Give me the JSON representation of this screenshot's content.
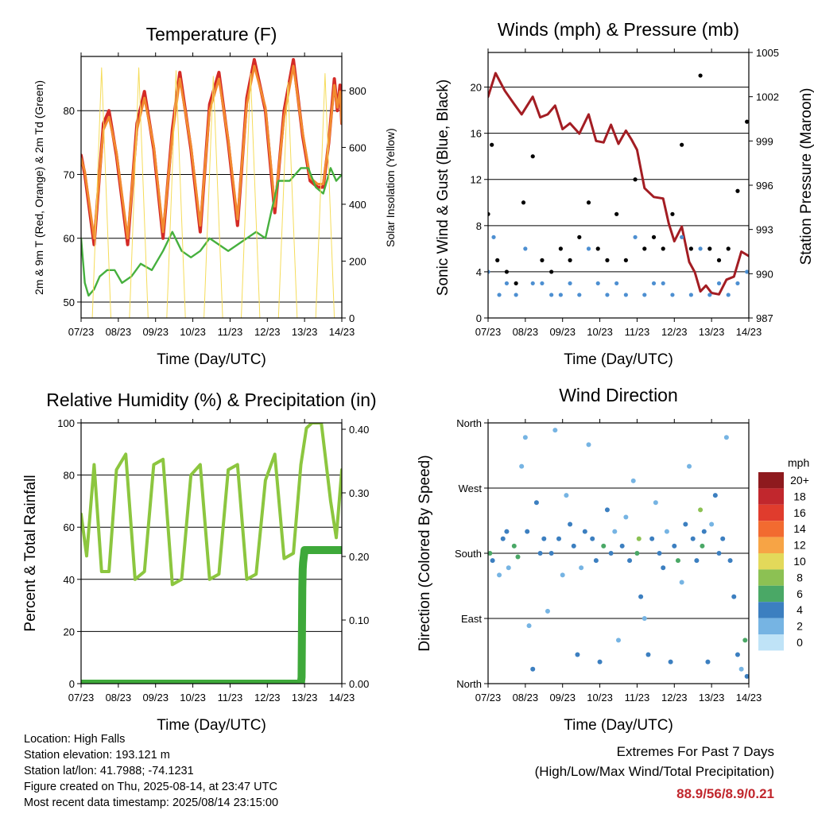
{
  "panels": {
    "temperature": {
      "title": "Temperature (F)",
      "xlabel": "Time (Day/UTC)",
      "ylabel": "2m & 9m T (Red, Orange) & 2m Td (Green)",
      "ylabel_right": "Solar Insolation (Yellow)"
    },
    "wind": {
      "title": "Winds (mph) & Pressure (mb)",
      "xlabel": "Time (Day/UTC)",
      "ylabel": "Sonic Wind & Gust (Blue, Black)",
      "ylabel_right": "Station Pressure (Maroon)"
    },
    "humidity": {
      "title": "Relative Humidity (%) & Precipitation (in)",
      "xlabel": "Time (Day/UTC)",
      "ylabel": "Percent & Total Rainfall"
    },
    "direction": {
      "title": "Wind Direction",
      "xlabel": "Time (Day/UTC)",
      "ylabel": "Direction (Colored By Speed)",
      "legend_title": "mph",
      "legend_labels": [
        "20+",
        "18",
        "16",
        "14",
        "12",
        "10",
        "8",
        "6",
        "4",
        "2",
        "0"
      ],
      "legend_colors": [
        "#8e1a1e",
        "#c1272d",
        "#e03c2d",
        "#f26b30",
        "#f7a445",
        "#e3d95a",
        "#8cc153",
        "#4aa866",
        "#3c7fc0",
        "#76b4e3",
        "#bfe3f7"
      ]
    }
  },
  "footer": {
    "location": "Location: High Falls",
    "elevation": "Station elevation: 193.121 m",
    "latlon": "Station lat/lon: 41.7988; -74.1231",
    "created": "Figure created on Thu, 2025-08-14, at 23:47 UTC",
    "recent": "Most recent data timestamp: 2025/08/14 23:15:00",
    "extremes_title": "Extremes For Past 7 Days",
    "extremes_sub": "(High/Low/Max Wind/Total Precipitation)",
    "extremes_values": "88.9/56/8.9/0.21"
  },
  "chart_data": [
    {
      "type": "line",
      "title": "Temperature (F)",
      "xlabel": "Time (Day/UTC)",
      "x_ticks": [
        "07/23",
        "08/23",
        "09/23",
        "10/23",
        "11/23",
        "12/23",
        "13/23",
        "14/23"
      ],
      "xlim": [
        0,
        7
      ],
      "ylabel": "2m & 9m T (Red, Orange) & 2m Td (Green)",
      "ylim": [
        47.5,
        88.5
      ],
      "y_ticks": [
        50,
        60,
        70,
        80
      ],
      "ylabel_right": "Solar Insolation (Yellow)",
      "ylim_right": [
        0,
        920
      ],
      "y_ticks_right": [
        0,
        200,
        400,
        600,
        800
      ],
      "grid": "horizontal",
      "series": [
        {
          "name": "2m T",
          "color": "#d42a26",
          "width": 4,
          "x": [
            0,
            0.1,
            0.35,
            0.6,
            0.75,
            0.95,
            1.25,
            1.5,
            1.7,
            1.95,
            2.2,
            2.45,
            2.65,
            2.95,
            3.2,
            3.45,
            3.7,
            3.95,
            4.2,
            4.45,
            4.65,
            4.95,
            5.2,
            5.45,
            5.7,
            5.95,
            6.15,
            6.35,
            6.5,
            6.65,
            6.8,
            6.88,
            6.95,
            7
          ],
          "y": [
            73,
            70,
            59,
            78,
            80,
            73,
            59,
            78,
            83,
            74,
            60,
            77,
            86,
            74,
            61,
            81,
            86,
            75,
            62,
            82,
            88,
            80,
            64,
            80,
            88,
            76,
            69,
            68,
            68,
            75,
            85,
            80,
            84,
            78
          ]
        },
        {
          "name": "9m T",
          "color": "#f28a30",
          "width": 3,
          "x": [
            0,
            0.1,
            0.35,
            0.6,
            0.75,
            0.95,
            1.25,
            1.5,
            1.7,
            1.95,
            2.2,
            2.45,
            2.65,
            2.95,
            3.2,
            3.45,
            3.7,
            3.95,
            4.2,
            4.45,
            4.65,
            4.95,
            5.2,
            5.45,
            5.7,
            5.95,
            6.15,
            6.35,
            6.5,
            6.65,
            6.8,
            6.88,
            6.95,
            7
          ],
          "y": [
            72.5,
            70.5,
            60,
            77,
            79,
            73.5,
            60,
            77,
            82,
            74.5,
            61,
            76,
            85,
            74.5,
            62,
            80,
            85,
            75.5,
            63,
            81,
            87,
            80.5,
            65,
            79,
            87,
            76.5,
            69.5,
            68.5,
            68.5,
            75,
            84,
            80.5,
            83,
            78
          ]
        },
        {
          "name": "2m Td",
          "color": "#46b03e",
          "width": 2.4,
          "x": [
            0,
            0.1,
            0.2,
            0.35,
            0.5,
            0.7,
            0.9,
            1.1,
            1.35,
            1.6,
            1.9,
            2.2,
            2.45,
            2.7,
            2.95,
            3.2,
            3.45,
            3.7,
            3.95,
            4.2,
            4.45,
            4.7,
            4.95,
            5.1,
            5.3,
            5.6,
            5.9,
            6.1,
            6.3,
            6.5,
            6.7,
            6.85,
            7
          ],
          "y": [
            60,
            53,
            51,
            52,
            54,
            55,
            55,
            53,
            54,
            56,
            55,
            58,
            61,
            58,
            57,
            58,
            60,
            59,
            58,
            59,
            60,
            61,
            60,
            64,
            69,
            69,
            71,
            71,
            68,
            67,
            71,
            69,
            70
          ]
        },
        {
          "name": "Solar Insolation",
          "color": "#f5dc5a",
          "width": 1,
          "axis": "right",
          "x": [
            0,
            0.3,
            0.55,
            0.8,
            1.05,
            1.3,
            1.55,
            1.8,
            2.05,
            2.3,
            2.55,
            2.8,
            3.05,
            3.3,
            3.55,
            3.8,
            4.05,
            4.3,
            4.55,
            4.8,
            5.05,
            5.3,
            5.55,
            5.8,
            6.05,
            6.3,
            6.55,
            6.8,
            7
          ],
          "y": [
            0,
            0,
            880,
            0,
            0,
            0,
            880,
            0,
            0,
            0,
            870,
            0,
            0,
            0,
            850,
            0,
            0,
            0,
            860,
            0,
            0,
            0,
            830,
            0,
            0,
            0,
            860,
            0,
            0
          ]
        }
      ]
    },
    {
      "type": "line",
      "title": "Winds (mph) & Pressure (mb)",
      "xlabel": "Time (Day/UTC)",
      "x_ticks": [
        "07/23",
        "08/23",
        "09/23",
        "10/23",
        "11/23",
        "12/23",
        "13/23",
        "14/23"
      ],
      "xlim": [
        0,
        7
      ],
      "ylabel": "Sonic Wind & Gust (Blue, Black)",
      "ylim": [
        0,
        23
      ],
      "y_ticks": [
        0,
        4,
        8,
        12,
        16,
        20
      ],
      "ylabel_right": "Station Pressure (Maroon)",
      "ylim_right": [
        987,
        1005
      ],
      "y_ticks_right": [
        987,
        990,
        993,
        996,
        999,
        1002,
        1005
      ],
      "grid": "horizontal",
      "series": [
        {
          "name": "Station Pressure",
          "color": "#a31d23",
          "width": 3,
          "axis": "right",
          "x": [
            0,
            0.2,
            0.45,
            0.7,
            0.9,
            1.2,
            1.4,
            1.6,
            1.8,
            2,
            2.2,
            2.45,
            2.7,
            2.9,
            3.1,
            3.3,
            3.5,
            3.7,
            3.85,
            4,
            4.2,
            4.45,
            4.7,
            4.85,
            5,
            5.2,
            5.4,
            5.55,
            5.7,
            5.85,
            6,
            6.2,
            6.4,
            6.6,
            6.8,
            7
          ],
          "y": [
            1002,
            1003.6,
            1002.4,
            1001.5,
            1000.8,
            1002,
            1000.6,
            1000.8,
            1001.4,
            999.8,
            1000.2,
            999.5,
            1000.8,
            999,
            998.9,
            1000.1,
            998.8,
            999.7,
            999.1,
            998.4,
            995.8,
            995.2,
            995.1,
            993.4,
            992.2,
            993.2,
            990.8,
            990.1,
            988.8,
            989.2,
            988.7,
            988.6,
            989.6,
            989.8,
            991.5,
            991.2
          ]
        },
        {
          "name": "Sonic Wind",
          "color": "#4d8fd1",
          "style": "dots",
          "x": [
            0,
            0.15,
            0.3,
            0.5,
            0.75,
            1.0,
            1.2,
            1.45,
            1.7,
            1.95,
            2.2,
            2.45,
            2.7,
            2.95,
            3.2,
            3.45,
            3.7,
            3.95,
            4.2,
            4.45,
            4.7,
            4.95,
            5.2,
            5.45,
            5.7,
            5.95,
            6.2,
            6.45,
            6.7,
            6.95
          ],
          "y": [
            4,
            7,
            2,
            3,
            2,
            6,
            3,
            3,
            2,
            2,
            3,
            2,
            6,
            3,
            2,
            3,
            2,
            7,
            2,
            3,
            3,
            2,
            7,
            2,
            6,
            2,
            3,
            2,
            3,
            4
          ]
        },
        {
          "name": "Gust",
          "color": "#000000",
          "style": "dots",
          "x": [
            0,
            0.1,
            0.25,
            0.5,
            0.75,
            0.95,
            1.2,
            1.45,
            1.7,
            1.95,
            2.2,
            2.45,
            2.7,
            2.95,
            3.2,
            3.45,
            3.7,
            3.95,
            4.2,
            4.45,
            4.7,
            4.95,
            5.2,
            5.45,
            5.7,
            5.95,
            6.2,
            6.45,
            6.7,
            6.95
          ],
          "y": [
            9,
            15,
            5,
            4,
            3,
            10,
            14,
            5,
            4,
            6,
            5,
            7,
            10,
            6,
            5,
            9,
            5,
            12,
            6,
            7,
            6,
            9,
            15,
            6,
            21,
            6,
            5,
            6,
            11,
            17
          ]
        }
      ]
    },
    {
      "type": "line",
      "title": "Relative Humidity (%) & Precipitation (in)",
      "xlabel": "Time (Day/UTC)",
      "x_ticks": [
        "07/23",
        "08/23",
        "09/23",
        "10/23",
        "11/23",
        "12/23",
        "13/23",
        "14/23"
      ],
      "xlim": [
        0,
        7
      ],
      "ylabel": "Percent & Total Rainfall",
      "ylim": [
        0,
        100
      ],
      "y_ticks": [
        0,
        20,
        40,
        60,
        80,
        100
      ],
      "ylim_right": [
        0,
        0.41
      ],
      "y_ticks_right": [
        0.0,
        0.1,
        0.2,
        0.3,
        0.4
      ],
      "grid": "horizontal",
      "series": [
        {
          "name": "Relative Humidity",
          "color": "#8cc63f",
          "width": 4,
          "x": [
            0,
            0.15,
            0.35,
            0.55,
            0.75,
            0.95,
            1.2,
            1.45,
            1.7,
            1.95,
            2.2,
            2.45,
            2.7,
            2.95,
            3.2,
            3.45,
            3.7,
            3.95,
            4.2,
            4.45,
            4.7,
            4.95,
            5.2,
            5.45,
            5.7,
            5.9,
            6.05,
            6.2,
            6.45,
            6.7,
            6.85,
            7
          ],
          "y": [
            65,
            49,
            84,
            43,
            43,
            82,
            88,
            40,
            43,
            84,
            86,
            38,
            40,
            80,
            84,
            40,
            42,
            82,
            84,
            40,
            42,
            78,
            88,
            48,
            50,
            84,
            98,
            100,
            100,
            70,
            56,
            82
          ]
        },
        {
          "name": "Total Rainfall",
          "color": "#3ea93a",
          "width": 10,
          "axis": "right",
          "x": [
            0,
            5.9,
            5.92,
            5.93,
            5.94,
            5.95,
            5.96,
            6.0,
            7
          ],
          "y": [
            0,
            0,
            0.01,
            0.09,
            0.15,
            0.18,
            0.19,
            0.21,
            0.21
          ]
        }
      ]
    },
    {
      "type": "scatter",
      "title": "Wind Direction",
      "xlabel": "Time (Day/UTC)",
      "x_ticks": [
        "07/23",
        "08/23",
        "09/23",
        "10/23",
        "11/23",
        "12/23",
        "13/23",
        "14/23"
      ],
      "xlim": [
        0,
        7
      ],
      "ylabel": "Direction (Colored By Speed)",
      "y_ticks": [
        "North",
        "East",
        "South",
        "West",
        "North"
      ],
      "ylim": [
        0,
        360
      ],
      "grid": "horizontal",
      "points": [
        [
          0.05,
          180,
          6
        ],
        [
          0.12,
          170,
          4
        ],
        [
          0.3,
          150,
          2
        ],
        [
          0.4,
          200,
          3
        ],
        [
          0.5,
          210,
          4
        ],
        [
          0.55,
          160,
          2
        ],
        [
          0.7,
          190,
          5
        ],
        [
          0.8,
          175,
          6
        ],
        [
          0.9,
          300,
          1
        ],
        [
          1.0,
          340,
          2
        ],
        [
          1.05,
          210,
          4
        ],
        [
          1.1,
          80,
          2
        ],
        [
          1.2,
          20,
          4
        ],
        [
          1.3,
          250,
          3
        ],
        [
          1.4,
          180,
          4
        ],
        [
          1.5,
          200,
          3
        ],
        [
          1.6,
          100,
          2
        ],
        [
          1.7,
          180,
          4
        ],
        [
          1.8,
          350,
          2
        ],
        [
          1.9,
          200,
          3
        ],
        [
          2.0,
          150,
          2
        ],
        [
          2.1,
          260,
          1
        ],
        [
          2.2,
          220,
          3
        ],
        [
          2.3,
          190,
          4
        ],
        [
          2.4,
          40,
          3
        ],
        [
          2.5,
          160,
          2
        ],
        [
          2.6,
          210,
          4
        ],
        [
          2.7,
          330,
          2
        ],
        [
          2.8,
          200,
          3
        ],
        [
          2.9,
          170,
          4
        ],
        [
          3.0,
          30,
          3
        ],
        [
          3.1,
          190,
          5
        ],
        [
          3.2,
          240,
          3
        ],
        [
          3.3,
          180,
          4
        ],
        [
          3.4,
          210,
          2
        ],
        [
          3.5,
          60,
          2
        ],
        [
          3.6,
          190,
          3
        ],
        [
          3.7,
          230,
          2
        ],
        [
          3.8,
          170,
          4
        ],
        [
          3.9,
          280,
          2
        ],
        [
          4.0,
          180,
          6
        ],
        [
          4.05,
          200,
          7
        ],
        [
          4.1,
          120,
          3
        ],
        [
          4.2,
          90,
          2
        ],
        [
          4.3,
          40,
          3
        ],
        [
          4.4,
          200,
          3
        ],
        [
          4.5,
          250,
          2
        ],
        [
          4.6,
          180,
          4
        ],
        [
          4.7,
          160,
          3
        ],
        [
          4.8,
          210,
          2
        ],
        [
          4.9,
          30,
          3
        ],
        [
          5.0,
          190,
          4
        ],
        [
          5.1,
          170,
          6
        ],
        [
          5.2,
          140,
          2
        ],
        [
          5.3,
          220,
          3
        ],
        [
          5.4,
          300,
          2
        ],
        [
          5.5,
          200,
          4
        ],
        [
          5.6,
          170,
          3
        ],
        [
          5.7,
          240,
          8
        ],
        [
          5.75,
          190,
          6
        ],
        [
          5.8,
          210,
          4
        ],
        [
          5.9,
          30,
          3
        ],
        [
          6.0,
          220,
          2
        ],
        [
          6.1,
          260,
          3
        ],
        [
          6.2,
          180,
          4
        ],
        [
          6.3,
          200,
          3
        ],
        [
          6.4,
          340,
          2
        ],
        [
          6.5,
          170,
          4
        ],
        [
          6.6,
          120,
          3
        ],
        [
          6.7,
          40,
          4
        ],
        [
          6.8,
          20,
          2
        ],
        [
          6.9,
          60,
          6
        ],
        [
          6.95,
          10,
          3
        ]
      ]
    }
  ]
}
